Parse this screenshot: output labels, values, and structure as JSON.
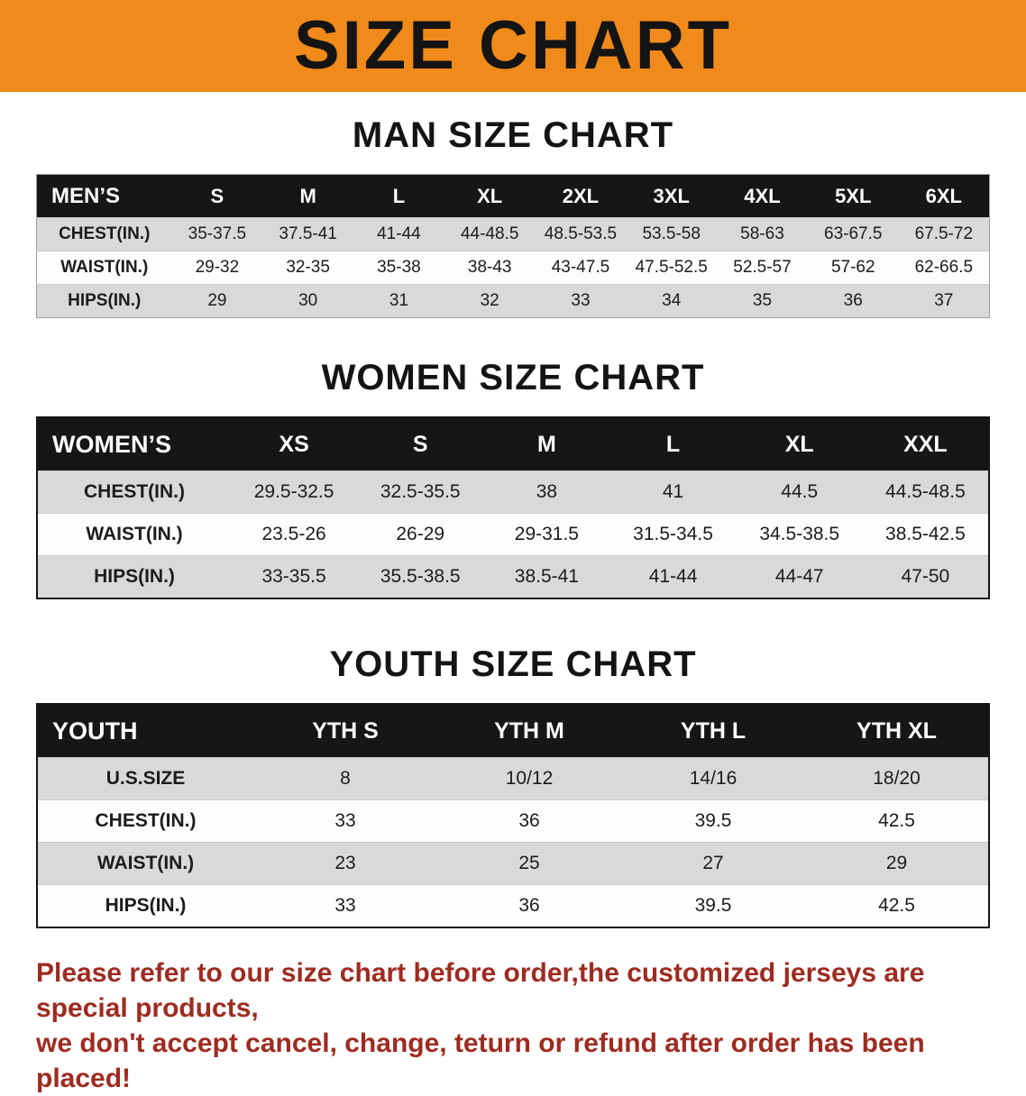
{
  "banner": {
    "title": "SIZE CHART",
    "bg_color": "#F08A1A",
    "text_color": "#141414"
  },
  "sections": {
    "men": {
      "heading": "MAN SIZE CHART",
      "table": {
        "label": "MEN’S",
        "columns": [
          "S",
          "M",
          "L",
          "XL",
          "2XL",
          "3XL",
          "4XL",
          "5XL",
          "6XL"
        ],
        "rows": [
          {
            "label": "CHEST(IN.)",
            "values": [
              "35-37.5",
              "37.5-41",
              "41-44",
              "44-48.5",
              "48.5-53.5",
              "53.5-58",
              "58-63",
              "63-67.5",
              "67.5-72"
            ]
          },
          {
            "label": "WAIST(IN.)",
            "values": [
              "29-32",
              "32-35",
              "35-38",
              "38-43",
              "43-47.5",
              "47.5-52.5",
              "52.5-57",
              "57-62",
              "62-66.5"
            ]
          },
          {
            "label": "HIPS(IN.)",
            "values": [
              "29",
              "30",
              "31",
              "32",
              "33",
              "34",
              "35",
              "36",
              "37"
            ]
          }
        ]
      }
    },
    "women": {
      "heading": "WOMEN SIZE CHART",
      "table": {
        "label": "WOMEN’S",
        "columns": [
          "XS",
          "S",
          "M",
          "L",
          "XL",
          "XXL"
        ],
        "rows": [
          {
            "label": "CHEST(IN.)",
            "values": [
              "29.5-32.5",
              "32.5-35.5",
              "38",
              "41",
              "44.5",
              "44.5-48.5"
            ]
          },
          {
            "label": "WAIST(IN.)",
            "values": [
              "23.5-26",
              "26-29",
              "29-31.5",
              "31.5-34.5",
              "34.5-38.5",
              "38.5-42.5"
            ]
          },
          {
            "label": "HIPS(IN.)",
            "values": [
              "33-35.5",
              "35.5-38.5",
              "38.5-41",
              "41-44",
              "44-47",
              "47-50"
            ]
          }
        ]
      }
    },
    "youth": {
      "heading": "YOUTH SIZE CHART",
      "table": {
        "label": "YOUTH",
        "columns": [
          "YTH S",
          "YTH M",
          "YTH L",
          "YTH XL"
        ],
        "rows": [
          {
            "label": "U.S.SIZE",
            "values": [
              "8",
              "10/12",
              "14/16",
              "18/20"
            ]
          },
          {
            "label": "CHEST(IN.)",
            "values": [
              "33",
              "36",
              "39.5",
              "42.5"
            ]
          },
          {
            "label": "WAIST(IN.)",
            "values": [
              "23",
              "25",
              "27",
              "29"
            ]
          },
          {
            "label": "HIPS(IN.)",
            "values": [
              "33",
              "36",
              "39.5",
              "42.5"
            ]
          }
        ]
      }
    }
  },
  "disclaimer": {
    "line1": "Please refer to our size chart before order,the customized jerseys are special products,",
    "line2": "we don't accept cancel, change, teturn or refund after order has been placed!",
    "color": "#9E2B20"
  }
}
